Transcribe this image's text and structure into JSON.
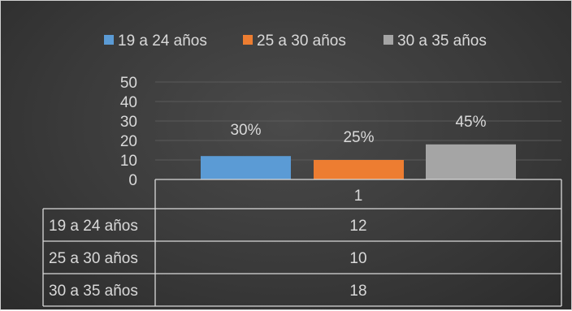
{
  "chart_data": {
    "type": "bar",
    "categories": [
      "1"
    ],
    "series": [
      {
        "name": "19 a 24 años",
        "values": [
          12
        ],
        "data_label": "30%",
        "color": "#5b9bd5"
      },
      {
        "name": "25 a 30 años",
        "values": [
          10
        ],
        "data_label": "25%",
        "color": "#ed7d31"
      },
      {
        "name": "30 a 35 años",
        "values": [
          18
        ],
        "data_label": "45%",
        "color": "#a5a5a5"
      }
    ],
    "y_ticks": [
      "0",
      "10",
      "20",
      "30",
      "40",
      "50"
    ],
    "ylim": [
      0,
      50
    ],
    "grid": true,
    "legend_position": "top",
    "data_table": true,
    "title": "",
    "xlabel": "",
    "ylabel": ""
  }
}
